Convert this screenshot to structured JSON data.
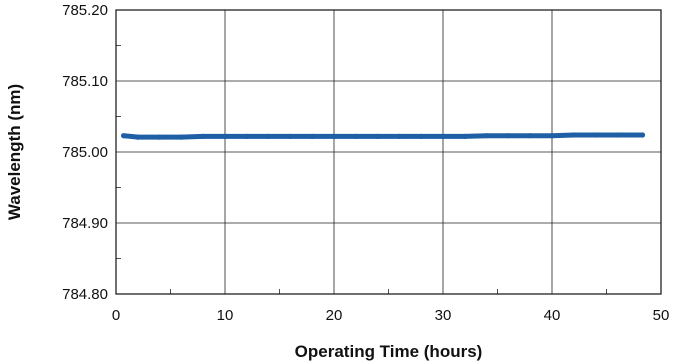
{
  "chart_data": {
    "type": "line",
    "title": "",
    "xlabel": "Operating Time (hours)",
    "ylabel": "Wavelength (nm)",
    "xlim": [
      0,
      50
    ],
    "ylim": [
      784.8,
      785.2
    ],
    "x_ticks": [
      0,
      10,
      20,
      30,
      40,
      50
    ],
    "x_tick_labels": [
      "0",
      "10",
      "20",
      "30",
      "40",
      "50"
    ],
    "y_ticks": [
      784.8,
      784.9,
      785.0,
      785.1,
      785.2
    ],
    "y_tick_labels": [
      "784.80",
      "784.90",
      "785.00",
      "785.10",
      "785.20"
    ],
    "grid": true,
    "legend": "none",
    "series": [
      {
        "color": "#1f5fa6",
        "x": [
          0.7,
          2,
          4,
          6,
          8,
          10,
          12,
          14,
          16,
          18,
          20,
          22,
          24,
          26,
          28,
          30,
          32,
          34,
          36,
          38,
          40,
          42,
          44,
          46,
          48.3
        ],
        "y": [
          785.023,
          785.021,
          785.021,
          785.021,
          785.022,
          785.022,
          785.022,
          785.022,
          785.022,
          785.022,
          785.022,
          785.022,
          785.022,
          785.022,
          785.022,
          785.022,
          785.022,
          785.023,
          785.023,
          785.023,
          785.023,
          785.024,
          785.024,
          785.024,
          785.024
        ]
      }
    ]
  }
}
